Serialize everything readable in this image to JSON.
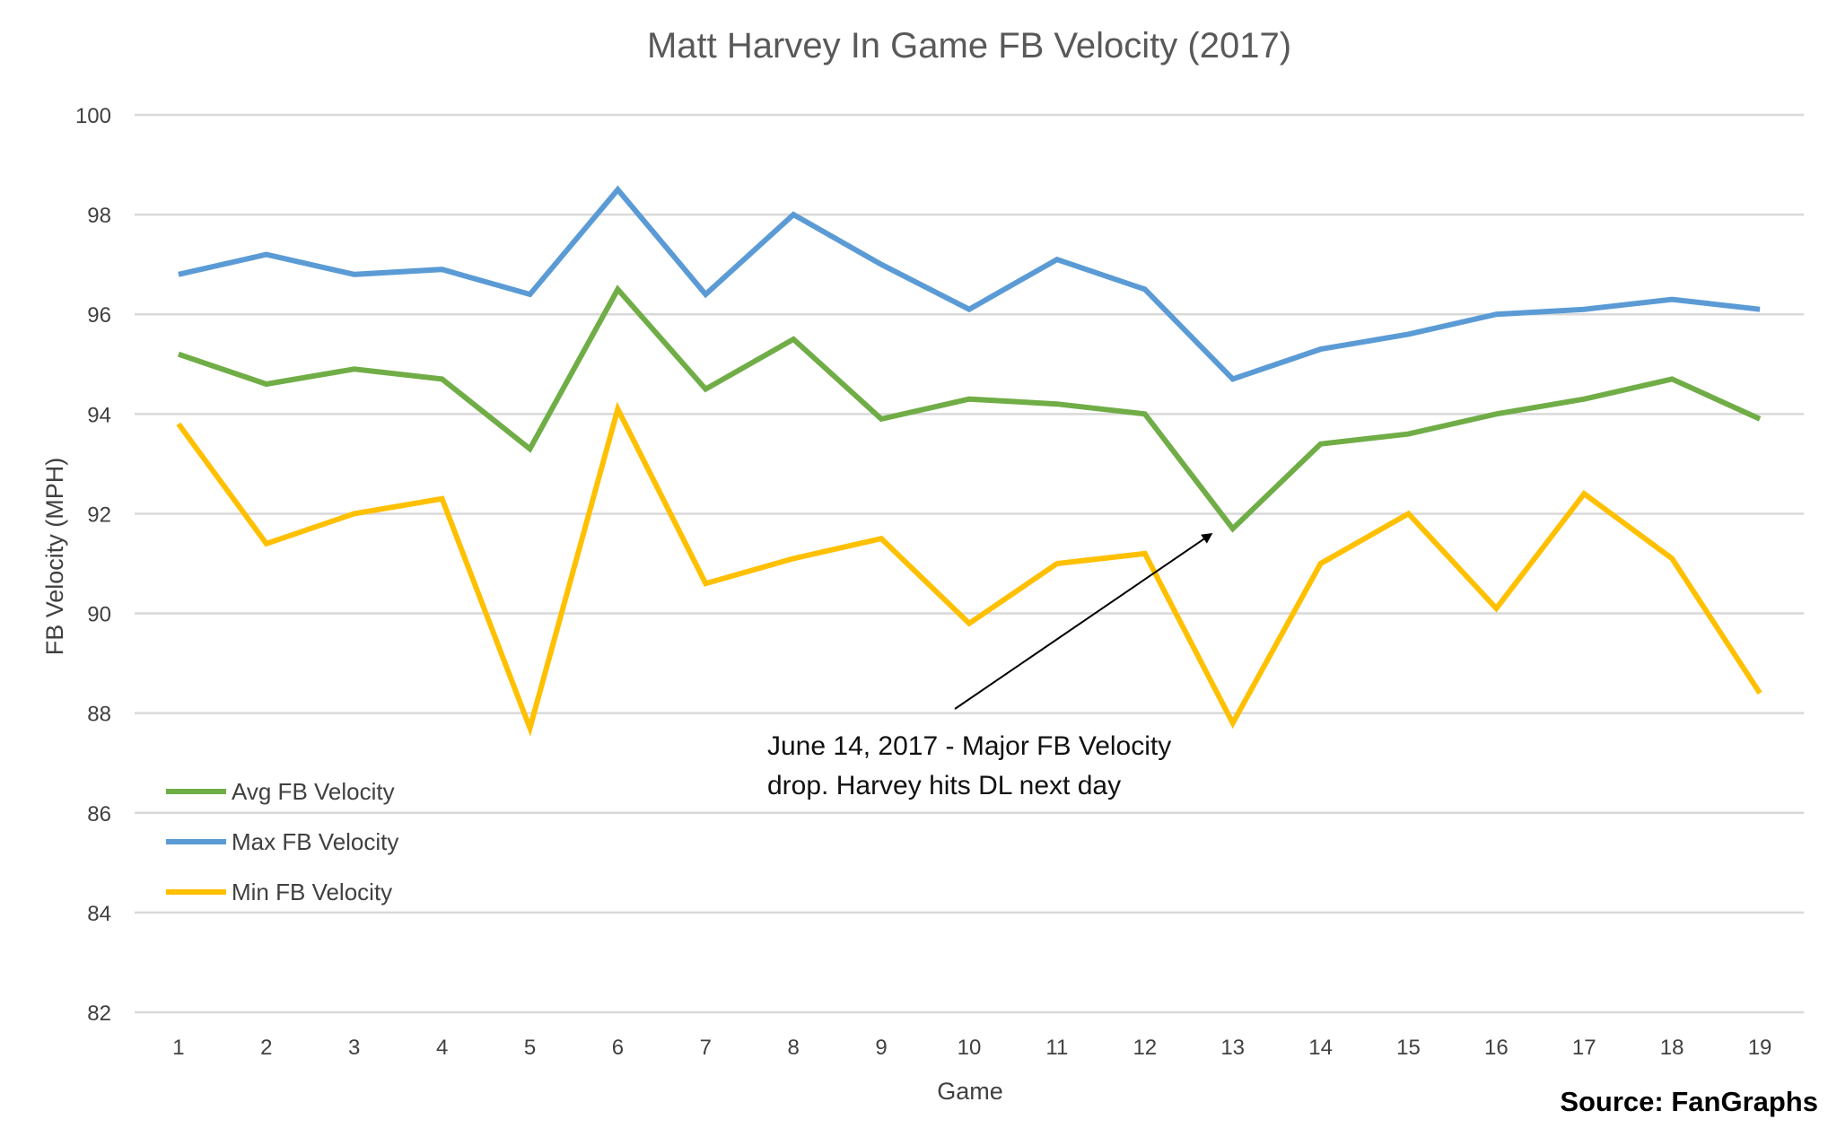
{
  "chart_data": {
    "type": "line",
    "title": "Matt Harvey In Game FB Velocity (2017)",
    "xlabel": "Game",
    "ylabel": "FB Velocity (MPH)",
    "x": [
      1,
      2,
      3,
      4,
      5,
      6,
      7,
      8,
      9,
      10,
      11,
      12,
      13,
      14,
      15,
      16,
      17,
      18,
      19
    ],
    "ylim": [
      82,
      100
    ],
    "yticks": [
      82,
      84,
      86,
      88,
      90,
      92,
      94,
      96,
      98,
      100
    ],
    "grid": true,
    "legend_position": "bottom-left",
    "series": [
      {
        "name": "Avg FB Velocity",
        "color": "#70ad47",
        "values": [
          95.2,
          94.6,
          94.9,
          94.7,
          93.3,
          96.5,
          94.5,
          95.5,
          93.9,
          94.3,
          94.2,
          94.0,
          91.7,
          93.4,
          93.6,
          94.0,
          94.3,
          94.7,
          93.9
        ]
      },
      {
        "name": "Max FB Velocity",
        "color": "#5b9bd5",
        "values": [
          96.8,
          97.2,
          96.8,
          96.9,
          96.4,
          98.5,
          96.4,
          98.0,
          97.0,
          96.1,
          97.1,
          96.5,
          94.7,
          95.3,
          95.6,
          96.0,
          96.1,
          96.3,
          96.1
        ]
      },
      {
        "name": "Min FB Velocity",
        "color": "#ffc000",
        "values": [
          93.8,
          91.4,
          92.0,
          92.3,
          87.7,
          94.1,
          90.6,
          91.1,
          91.5,
          89.8,
          91.0,
          91.2,
          87.8,
          91.0,
          92.0,
          90.1,
          92.4,
          91.1,
          88.4
        ]
      }
    ],
    "annotation": {
      "lines": [
        "June 14, 2017 - Major FB Velocity",
        "drop. Harvey hits DL next day"
      ],
      "target_x": 13,
      "target_y": 91.7
    },
    "source": "Source: FanGraphs"
  }
}
